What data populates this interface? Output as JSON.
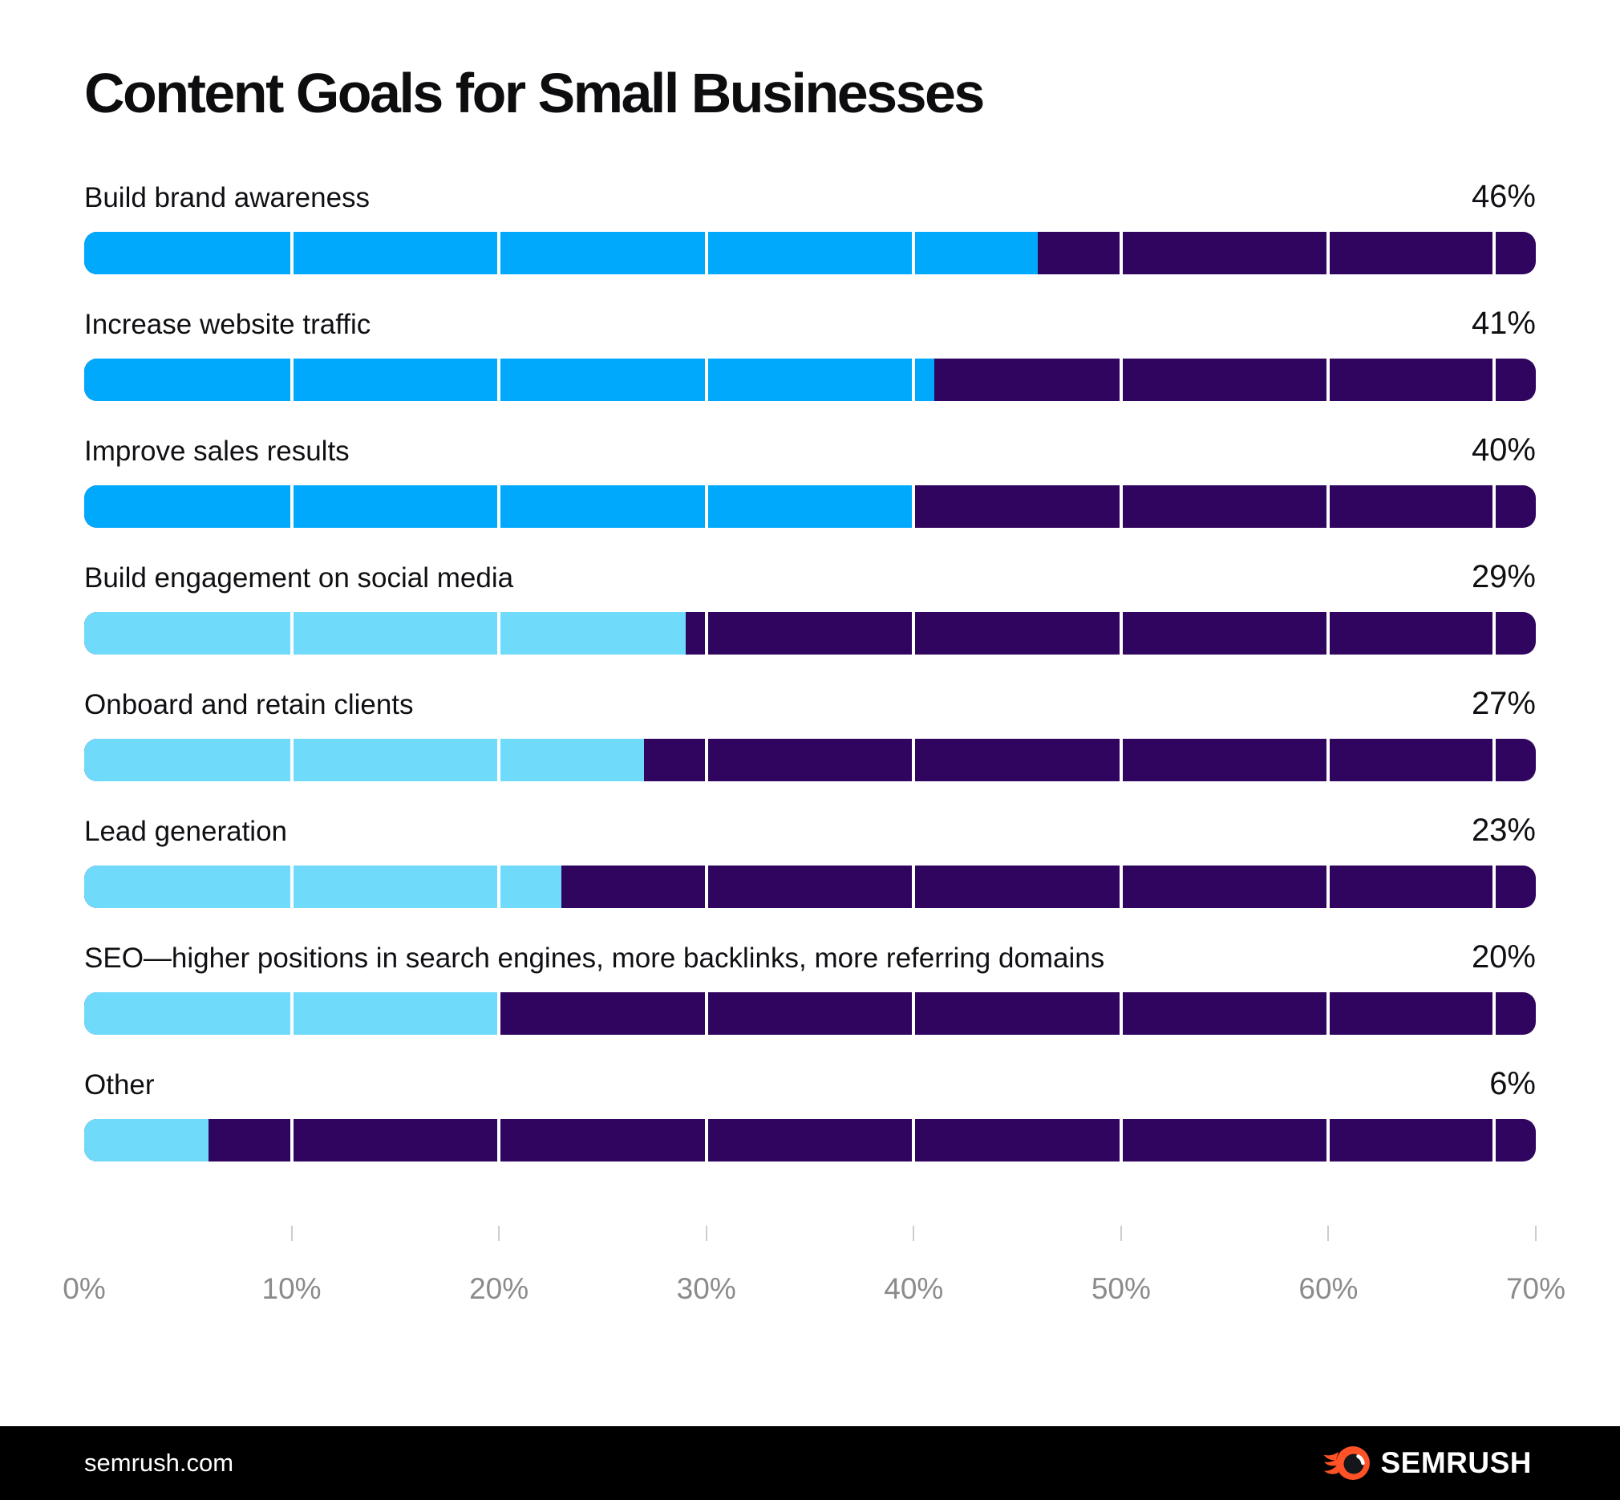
{
  "title": "Content Goals for Small Businesses",
  "chart_data": {
    "type": "bar",
    "orientation": "horizontal",
    "title": "Content Goals for Small Businesses",
    "categories": [
      "Build brand awareness",
      "Increase website traffic",
      "Improve sales results",
      "Build engagement on social media",
      "Onboard and retain clients",
      "Lead generation",
      "SEO—higher positions in search engines, more backlinks, more referring domains",
      "Other"
    ],
    "values": [
      46,
      41,
      40,
      29,
      27,
      23,
      20,
      6
    ],
    "value_labels": [
      "46%",
      "41%",
      "40%",
      "29%",
      "27%",
      "23%",
      "20%",
      "6%"
    ],
    "xlabel": "",
    "ylabel": "",
    "xlim": [
      0,
      70
    ],
    "x_tick_labels": [
      "0%",
      "10%",
      "20%",
      "30%",
      "40%",
      "50%",
      "60%",
      "70%"
    ],
    "grid": false,
    "legend": false,
    "bar_fill_colors": [
      "#00A9FB",
      "#00A9FB",
      "#00A9FB",
      "#70DAFB",
      "#70DAFB",
      "#70DAFB",
      "#70DAFB",
      "#70DAFB"
    ],
    "bar_track_color": "#30055F",
    "segment_separators_pct": [
      10,
      20,
      30,
      40,
      50,
      60,
      68
    ]
  },
  "colors": {
    "bright_blue": "#00A9FB",
    "light_blue": "#70DAFB",
    "dark_purple": "#30055F",
    "axis_text": "#8b8b8b",
    "tick_gray": "#cdcdcd",
    "footer_bg": "#000000",
    "brand_orange": "#FF5226",
    "text": "#101014"
  },
  "footer": {
    "site_label": "semrush.com",
    "brand_name": "SEMRUSH",
    "logo_icon": "semrush-fireball-icon"
  }
}
